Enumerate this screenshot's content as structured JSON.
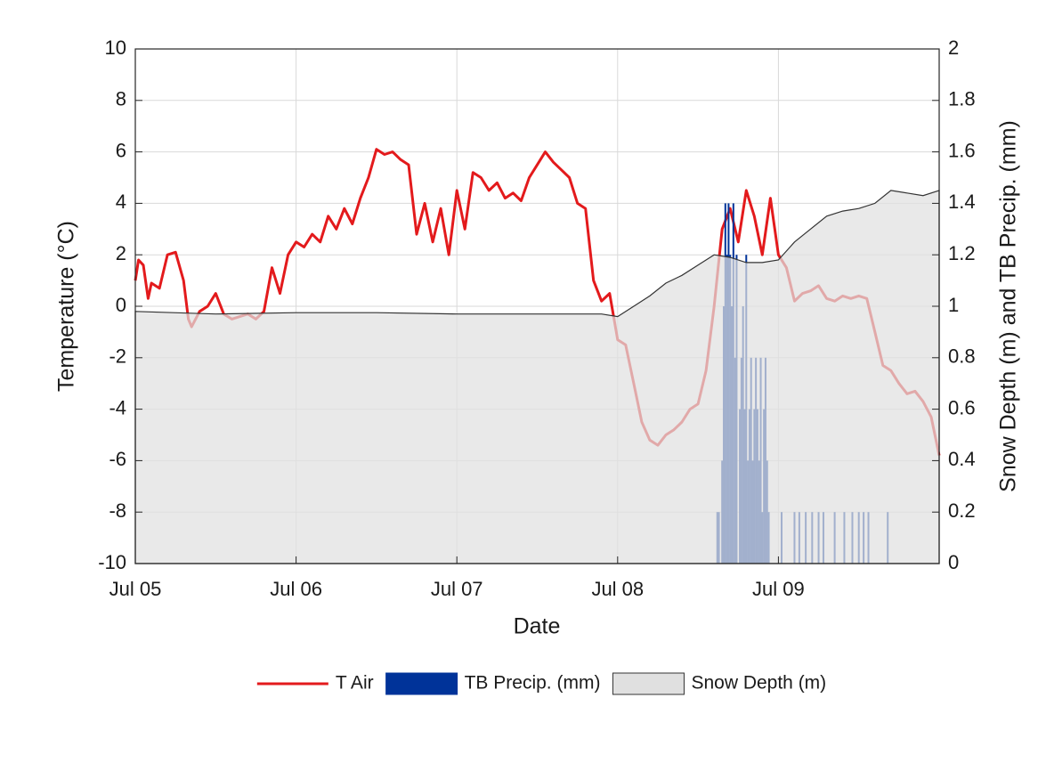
{
  "chart_data": {
    "type": "line",
    "x_label": "Date",
    "y_label": "Temperature (°C)",
    "y2_label": "Snow Depth (m) and TB Precip. (mm)",
    "xlim": [
      0,
      5
    ],
    "xticks": [
      {
        "value": 0,
        "label": "Jul 05"
      },
      {
        "value": 1,
        "label": "Jul 06"
      },
      {
        "value": 2,
        "label": "Jul 07"
      },
      {
        "value": 3,
        "label": "Jul 08"
      },
      {
        "value": 4,
        "label": "Jul 09"
      }
    ],
    "ylim": [
      -10,
      10
    ],
    "yticks": [
      -10,
      -8,
      -6,
      -4,
      -2,
      0,
      2,
      4,
      6,
      8,
      10
    ],
    "y2lim": [
      0,
      2
    ],
    "y2ticks": [
      0,
      0.2,
      0.4,
      0.6,
      0.8,
      1,
      1.2,
      1.4,
      1.6,
      1.8,
      2
    ],
    "grid": true,
    "legend": "bottom",
    "series": [
      {
        "name": "T Air",
        "type": "line",
        "color": "#e31a1c",
        "x": [
          0,
          0.02,
          0.05,
          0.08,
          0.1,
          0.15,
          0.2,
          0.25,
          0.3,
          0.33,
          0.35,
          0.4,
          0.45,
          0.5,
          0.55,
          0.6,
          0.65,
          0.7,
          0.75,
          0.8,
          0.85,
          0.9,
          0.95,
          1.0,
          1.05,
          1.1,
          1.15,
          1.2,
          1.25,
          1.3,
          1.35,
          1.4,
          1.45,
          1.5,
          1.55,
          1.6,
          1.65,
          1.7,
          1.75,
          1.8,
          1.85,
          1.9,
          1.95,
          2.0,
          2.05,
          2.1,
          2.15,
          2.2,
          2.25,
          2.3,
          2.35,
          2.4,
          2.45,
          2.5,
          2.55,
          2.6,
          2.65,
          2.7,
          2.75,
          2.8,
          2.85,
          2.9,
          2.95,
          3.0,
          3.05,
          3.1,
          3.15,
          3.2,
          3.25,
          3.3,
          3.35,
          3.4,
          3.45,
          3.5,
          3.55,
          3.6,
          3.65,
          3.7,
          3.75,
          3.8,
          3.85,
          3.9,
          3.95,
          4.0,
          4.05,
          4.1,
          4.15,
          4.2,
          4.25,
          4.3,
          4.35,
          4.4,
          4.45,
          4.5,
          4.55,
          4.6,
          4.65,
          4.7,
          4.75,
          4.8,
          4.85,
          4.9,
          4.95,
          5.0
        ],
        "values": [
          1.0,
          1.8,
          1.6,
          0.3,
          0.9,
          0.7,
          2.0,
          2.1,
          1.0,
          -0.5,
          -0.8,
          -0.2,
          0.0,
          0.5,
          -0.3,
          -0.5,
          -0.4,
          -0.3,
          -0.5,
          -0.2,
          1.5,
          0.5,
          2.0,
          2.5,
          2.3,
          2.8,
          2.5,
          3.5,
          3.0,
          3.8,
          3.2,
          4.2,
          5.0,
          6.1,
          5.9,
          6.0,
          5.7,
          5.5,
          2.8,
          4.0,
          2.5,
          3.8,
          2.0,
          4.5,
          3.0,
          5.2,
          5.0,
          4.5,
          4.8,
          4.2,
          4.4,
          4.1,
          5.0,
          5.5,
          6.0,
          5.6,
          5.3,
          5.0,
          4.0,
          3.8,
          1.0,
          0.2,
          0.5,
          -1.3,
          -1.5,
          -3.0,
          -4.5,
          -5.2,
          -5.4,
          -5.0,
          -4.8,
          -4.5,
          -4.0,
          -3.8,
          -2.5,
          0.0,
          3.0,
          3.8,
          2.5,
          4.5,
          3.5,
          2.0,
          4.2,
          2.0,
          1.5,
          0.2,
          0.5,
          0.6,
          0.8,
          0.3,
          0.2,
          0.4,
          0.3,
          0.4,
          0.3,
          -1.0,
          -2.3,
          -2.5,
          -3.0,
          -3.4,
          -3.3,
          -3.7,
          -4.3,
          -5.8
        ]
      },
      {
        "name": "TB Precip. (mm)",
        "type": "bar",
        "axis": "y2",
        "color": "#003399",
        "x": [
          3.62,
          3.63,
          3.65,
          3.66,
          3.67,
          3.68,
          3.69,
          3.7,
          3.71,
          3.72,
          3.73,
          3.74,
          3.76,
          3.77,
          3.78,
          3.79,
          3.8,
          3.81,
          3.82,
          3.83,
          3.84,
          3.85,
          3.86,
          3.87,
          3.88,
          3.89,
          3.9,
          3.91,
          3.92,
          3.93,
          3.94,
          4.02,
          4.1,
          4.13,
          4.17,
          4.21,
          4.25,
          4.28,
          4.35,
          4.41,
          4.46,
          4.5,
          4.53,
          4.56,
          4.68
        ],
        "values": [
          0.2,
          0.2,
          0.4,
          1.0,
          1.4,
          1.2,
          1.4,
          1.2,
          1.0,
          1.4,
          0.8,
          1.2,
          0.6,
          0.8,
          1.0,
          0.6,
          1.2,
          0.4,
          0.6,
          0.8,
          0.4,
          0.6,
          0.8,
          0.6,
          0.4,
          0.8,
          0.2,
          0.6,
          0.8,
          0.4,
          0.2,
          0.2,
          0.2,
          0.2,
          0.2,
          0.2,
          0.2,
          0.2,
          0.2,
          0.2,
          0.2,
          0.2,
          0.2,
          0.2,
          0.2
        ]
      },
      {
        "name": "Snow Depth (m)",
        "type": "area",
        "axis": "y2",
        "color": "#e0e0e0",
        "line_color": "#333333",
        "x": [
          0,
          0.5,
          1.0,
          1.5,
          2.0,
          2.5,
          2.9,
          3.0,
          3.1,
          3.2,
          3.3,
          3.4,
          3.5,
          3.6,
          3.7,
          3.8,
          3.9,
          4.0,
          4.1,
          4.2,
          4.3,
          4.4,
          4.5,
          4.6,
          4.7,
          4.8,
          4.9,
          5.0
        ],
        "values": [
          0.98,
          0.97,
          0.975,
          0.975,
          0.97,
          0.97,
          0.97,
          0.96,
          1.0,
          1.04,
          1.09,
          1.12,
          1.16,
          1.2,
          1.19,
          1.17,
          1.17,
          1.18,
          1.25,
          1.3,
          1.35,
          1.37,
          1.38,
          1.4,
          1.45,
          1.44,
          1.43,
          1.45
        ]
      }
    ]
  }
}
